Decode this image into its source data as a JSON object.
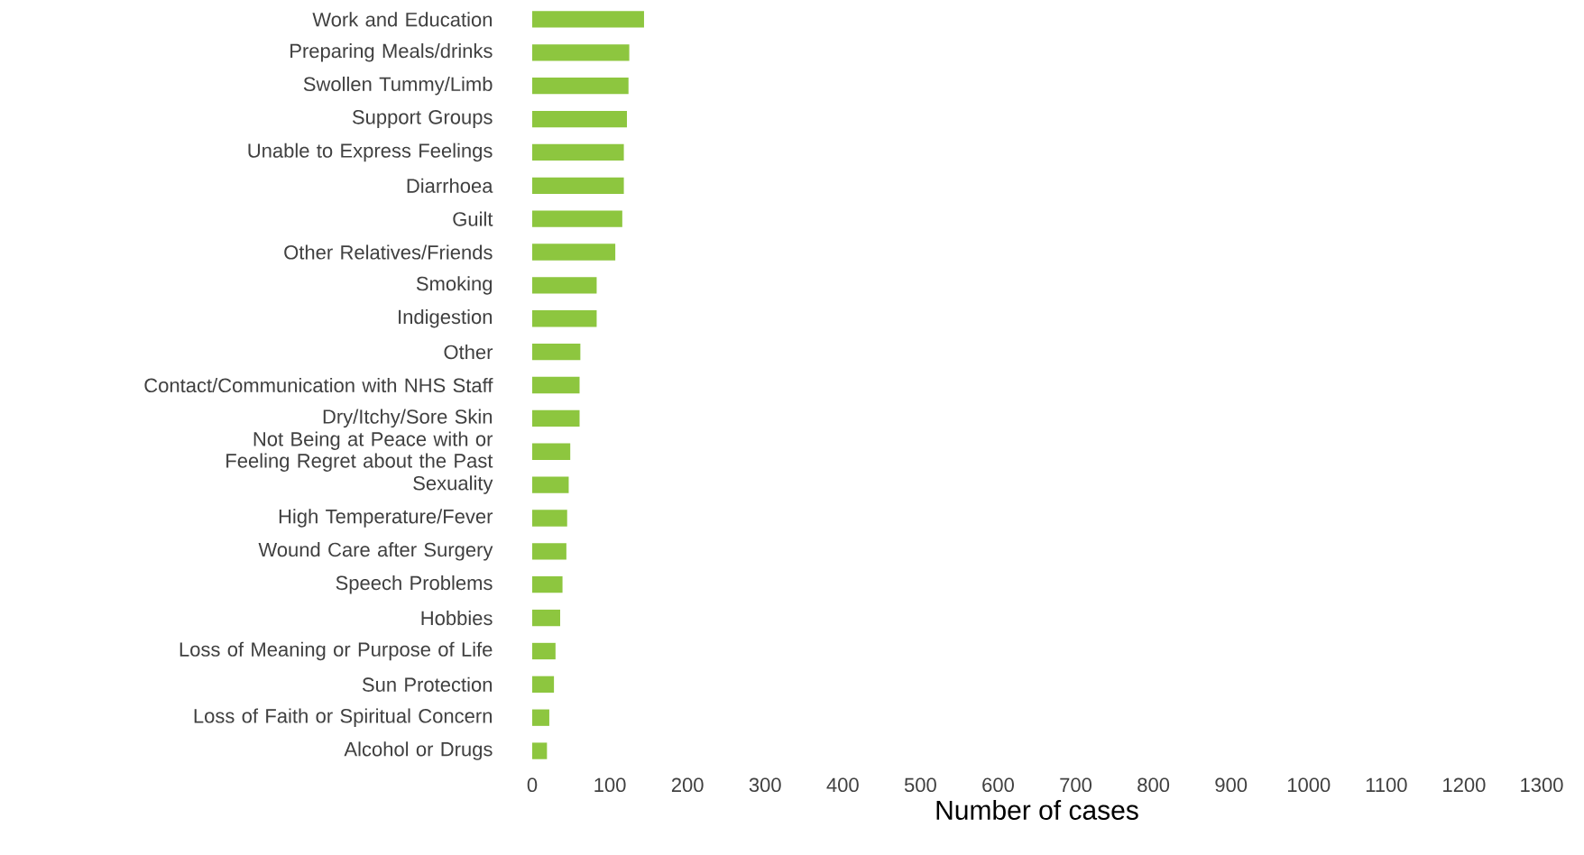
{
  "chart_data": {
    "type": "bar",
    "orientation": "horizontal",
    "xlabel": "Number of cases",
    "categories": [
      "Work and Education",
      "Preparing Meals/drinks",
      "Swollen Tummy/Limb",
      "Support Groups",
      "Unable to Express Feelings",
      "Diarrhoea",
      "Guilt",
      "Other Relatives/Friends",
      "Smoking",
      "Indigestion",
      "Other",
      "Contact/Communication with NHS Staff",
      "Dry/Itchy/Sore Skin",
      "Not Being at Peace with or Feeling Regret about the Past",
      "Sexuality",
      "High Temperature/Fever",
      "Wound Care after Surgery",
      "Speech Problems",
      "Hobbies",
      "Loss of Meaning or Purpose of Life",
      "Sun Protection",
      "Loss of Faith or Spiritual Concern",
      "Alcohol or Drugs"
    ],
    "values": [
      144,
      125,
      124,
      122,
      118,
      118,
      116,
      107,
      83,
      83,
      62,
      61,
      61,
      49,
      47,
      45,
      44,
      39,
      36,
      30,
      28,
      22,
      19
    ],
    "color": "#8dc63f",
    "xlim": [
      0,
      1300
    ],
    "xticks": [
      0,
      100,
      200,
      300,
      400,
      500,
      600,
      700,
      800,
      900,
      1000,
      1100,
      1200,
      1300
    ]
  }
}
